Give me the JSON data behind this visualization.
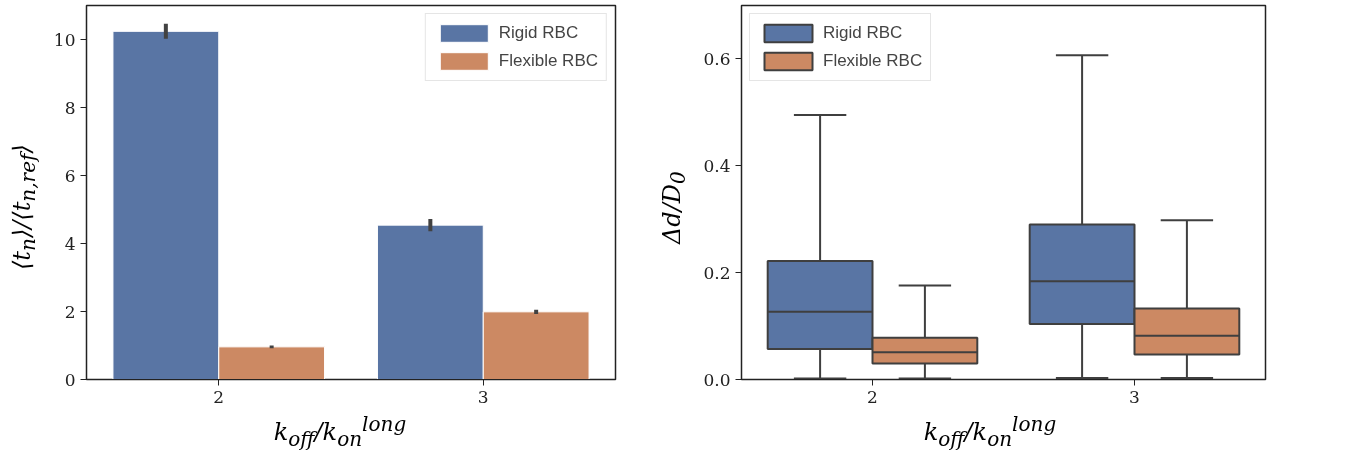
{
  "chart_data": [
    {
      "type": "bar",
      "categories": [
        "2",
        "3"
      ],
      "xlabel": "k$_{off}$/k$_{on}$$^{long}$",
      "ylabel": "⟨t$_{n}$⟩/⟨t$_{n,ref}$⟩",
      "ylim": [
        0,
        11
      ],
      "yticks": [
        0,
        2,
        4,
        6,
        8,
        10
      ],
      "legend": "top right",
      "grid": false,
      "series": [
        {
          "name": "Rigid RBC",
          "color": "#5975a4",
          "values": [
            10.24,
            4.54
          ],
          "errors": [
            0.22,
            0.18
          ]
        },
        {
          "name": "Flexible RBC",
          "color": "#cc8963",
          "values": [
            0.96,
            1.99
          ],
          "errors": [
            0.04,
            0.06
          ]
        }
      ]
    },
    {
      "type": "box",
      "categories": [
        "2",
        "3"
      ],
      "xlabel": "k$_{off}$/k$_{on}$$^{long}$",
      "ylabel": "Δd/D$_{0}$",
      "ylim": [
        0,
        0.7
      ],
      "yticks": [
        {
          "value": 0,
          "label": "0.0"
        },
        {
          "value": 0.2,
          "label": "0.2"
        },
        {
          "value": 0.4,
          "label": "0.4"
        },
        {
          "value": 0.6,
          "label": "0.6"
        }
      ],
      "legend": "top left",
      "grid": false,
      "series": [
        {
          "name": "Rigid RBC",
          "color": "#5975a4",
          "boxes": [
            {
              "low": 0.002,
              "q1": 0.057,
              "median": 0.127,
              "q3": 0.222,
              "high": 0.495
            },
            {
              "low": 0.003,
              "q1": 0.104,
              "median": 0.184,
              "q3": 0.29,
              "high": 0.607
            }
          ]
        },
        {
          "name": "Flexible RBC",
          "color": "#cc8963",
          "boxes": [
            {
              "low": 0.002,
              "q1": 0.03,
              "median": 0.051,
              "q3": 0.078,
              "high": 0.176
            },
            {
              "low": 0.003,
              "q1": 0.047,
              "median": 0.082,
              "q3": 0.133,
              "high": 0.298
            }
          ]
        }
      ]
    }
  ]
}
